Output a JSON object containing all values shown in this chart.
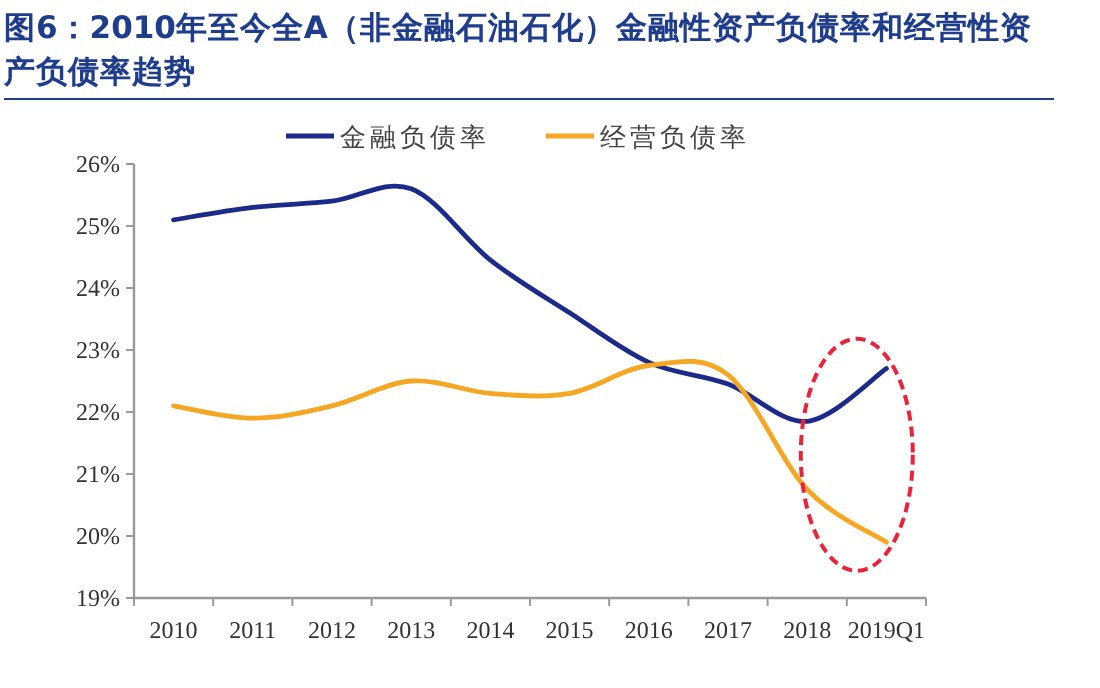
{
  "chart_data": {
    "type": "line",
    "title": "图6：2010年至今全A（非金融石油石化）金融性资产负债率和经营性资产负债率趋势",
    "categories": [
      "2010",
      "2011",
      "2012",
      "2013",
      "2014",
      "2015",
      "2016",
      "2017",
      "2018",
      "2019Q1"
    ],
    "series": [
      {
        "name": "金融负债率",
        "color": "#1c2a8a",
        "values": [
          25.1,
          25.3,
          25.4,
          25.6,
          24.45,
          23.6,
          22.8,
          22.45,
          21.85,
          22.7
        ]
      },
      {
        "name": "经营负债率",
        "color": "#f5a623",
        "values": [
          22.1,
          21.9,
          22.1,
          22.5,
          22.3,
          22.3,
          22.75,
          22.6,
          20.75,
          19.9
        ]
      }
    ],
    "ylim": [
      19,
      26
    ],
    "yticks": [
      {
        "value": 19,
        "label": "19%"
      },
      {
        "value": 20,
        "label": "20%"
      },
      {
        "value": 21,
        "label": "21%"
      },
      {
        "value": 22,
        "label": "22%"
      },
      {
        "value": 23,
        "label": "23%"
      },
      {
        "value": 24,
        "label": "24%"
      },
      {
        "value": 25,
        "label": "25%"
      },
      {
        "value": 26,
        "label": "26%"
      }
    ],
    "grid": false,
    "legend": "top",
    "marker": "none",
    "line_style": "solid"
  }
}
